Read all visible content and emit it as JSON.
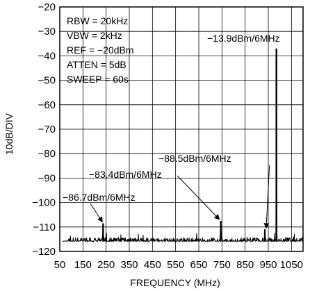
{
  "chart_data": {
    "type": "line",
    "title": "",
    "xlabel": "FREQUENCY (MHz)",
    "ylabel": "10dB/DIV",
    "xlim": [
      50,
      1100
    ],
    "ylim": [
      -120,
      -20
    ],
    "x_ticks": [
      50,
      150,
      250,
      350,
      450,
      550,
      650,
      750,
      850,
      950,
      1050
    ],
    "y_ticks": [
      -20,
      -30,
      -40,
      -50,
      -60,
      -70,
      -80,
      -90,
      -100,
      -110,
      -120
    ],
    "x_tick_labels": [
      "50",
      "150",
      "250",
      "350",
      "450",
      "550",
      "650",
      "750",
      "850",
      "950",
      "1050"
    ],
    "y_tick_labels": [
      "−20",
      "−30",
      "−40",
      "−50",
      "−60",
      "−70",
      "−80",
      "−90",
      "−100",
      "−110",
      "−120"
    ],
    "grid": true,
    "settings": [
      "RBW = 20kHz",
      "VBW = 2kHz",
      "REF = −20dBm",
      "ATTEN = 5dB",
      "SWEEP = 60s"
    ],
    "noise_floor_dbm": -116,
    "peaks": [
      {
        "freq": 237,
        "level": -108.5
      },
      {
        "freq": 745,
        "level": -107.5
      },
      {
        "freq": 935,
        "level": -111
      },
      {
        "freq": 985,
        "level": -37
      }
    ],
    "annotations": [
      {
        "text": "−13.9dBm/6MHz",
        "freq": 985,
        "level": -37
      },
      {
        "text": "−88.5dBm/6MHz",
        "freq": 935,
        "level": -111
      },
      {
        "text": "−83.4dBm/6MHz",
        "freq": 745,
        "level": -107.5
      },
      {
        "text": "−86.7dBm/6MHz",
        "freq": 237,
        "level": -108.5
      }
    ]
  }
}
